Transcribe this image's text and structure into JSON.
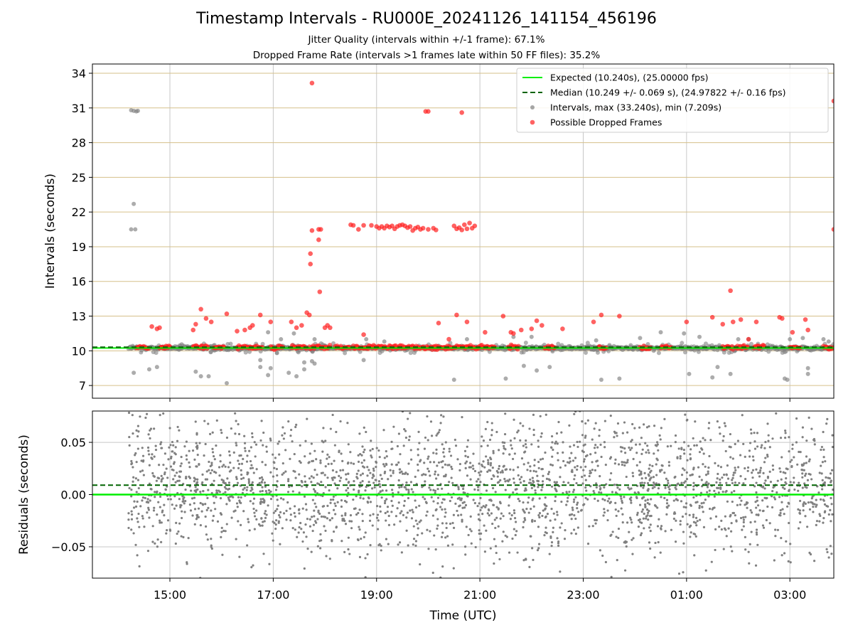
{
  "title": "Timestamp Intervals - RU000E_20241126_141154_456196",
  "subtitle_lines": [
    "Jitter Quality (intervals within +/-1 frame): 67.1%",
    "Dropped Frame Rate (intervals >1 frames late within 50 FF files): 35.2%"
  ],
  "colors": {
    "expected": "#00ee00",
    "median": "#006400",
    "intervals": "#808080",
    "dropped": "#ff2020",
    "h_grid": "#d6c08a",
    "v_grid": "#c8c8c8"
  },
  "chart_data": [
    {
      "type": "scatter",
      "panel": "intervals",
      "ylabel": "Intervals (seconds)",
      "xlabel": "",
      "x_unit": "hours since 00:00 UTC 2024-11-26",
      "xlim": [
        13.5,
        27.85
      ],
      "ylim": [
        5.9,
        34.8
      ],
      "yticks": [
        7,
        10,
        13,
        16,
        19,
        22,
        25,
        28,
        31,
        34
      ],
      "y_grid": true,
      "x_grid": true,
      "legend_position": "top-right",
      "legend": [
        "Expected (10.240s), (25.00000 fps)",
        "Median (10.249 +/- 0.069 s), (24.97822 +/- 0.16 fps)",
        "Intervals, max (33.240s), min (7.209s)",
        "Possible Dropped Frames"
      ],
      "expected_value": 10.24,
      "median_value": 10.249,
      "series": [
        {
          "name": "Intervals, max (33.240s), min (7.209s)",
          "points": [
            [
              14.25,
              30.8
            ],
            [
              14.3,
              30.75
            ],
            [
              14.35,
              30.7
            ],
            [
              14.38,
              30.75
            ],
            [
              14.25,
              20.5
            ],
            [
              14.33,
              20.5
            ],
            [
              14.3,
              22.7
            ],
            [
              14.3,
              8.1
            ],
            [
              14.6,
              8.4
            ],
            [
              14.75,
              8.6
            ],
            [
              15.5,
              8.2
            ],
            [
              15.6,
              7.8
            ],
            [
              15.75,
              7.8
            ],
            [
              16.1,
              7.2
            ],
            [
              16.75,
              9.2
            ],
            [
              16.75,
              8.6
            ],
            [
              16.9,
              7.9
            ],
            [
              16.95,
              8.5
            ],
            [
              17.3,
              8.1
            ],
            [
              17.45,
              7.8
            ],
            [
              17.6,
              8.4
            ],
            [
              17.75,
              9.1
            ],
            [
              17.8,
              8.9
            ],
            [
              17.6,
              9.0
            ],
            [
              18.75,
              9.2
            ],
            [
              20.5,
              7.5
            ],
            [
              21.5,
              7.6
            ],
            [
              21.85,
              8.7
            ],
            [
              22.1,
              8.3
            ],
            [
              22.35,
              8.6
            ],
            [
              23.35,
              7.5
            ],
            [
              23.7,
              7.6
            ],
            [
              25.05,
              8.0
            ],
            [
              25.5,
              7.7
            ],
            [
              25.6,
              8.6
            ],
            [
              25.85,
              8.0
            ],
            [
              26.95,
              7.5
            ],
            [
              26.9,
              7.6
            ],
            [
              27.35,
              8.5
            ],
            [
              27.35,
              8.0
            ],
            [
              16.9,
              11.6
            ],
            [
              17.15,
              11.0
            ],
            [
              17.4,
              11.5
            ],
            [
              17.8,
              11.0
            ],
            [
              18.8,
              11.0
            ],
            [
              19.15,
              10.8
            ],
            [
              20.75,
              11.0
            ],
            [
              21.65,
              11.2
            ],
            [
              22.0,
              11.2
            ],
            [
              23.25,
              10.9
            ],
            [
              24.1,
              11.1
            ],
            [
              24.5,
              11.6
            ],
            [
              24.95,
              11.5
            ],
            [
              25.25,
              11.2
            ],
            [
              26.0,
              11.0
            ],
            [
              26.2,
              11.0
            ],
            [
              27.0,
              11.0
            ],
            [
              27.25,
              11.1
            ],
            [
              27.65,
              11.0
            ],
            [
              27.75,
              10.8
            ]
          ]
        },
        {
          "name": "Possible Dropped Frames",
          "points": [
            [
              17.75,
              33.15
            ],
            [
              19.95,
              30.7
            ],
            [
              20.0,
              30.7
            ],
            [
              20.65,
              30.6
            ],
            [
              27.85,
              31.6
            ],
            [
              17.75,
              20.4
            ],
            [
              17.88,
              20.5
            ],
            [
              17.92,
              20.5
            ],
            [
              17.72,
              18.4
            ],
            [
              17.72,
              17.5
            ],
            [
              17.88,
              19.6
            ],
            [
              17.9,
              15.1
            ],
            [
              18.05,
              12.2
            ],
            [
              18.1,
              12.0
            ],
            [
              18.5,
              20.9
            ],
            [
              18.55,
              20.85
            ],
            [
              18.65,
              20.5
            ],
            [
              18.75,
              20.85
            ],
            [
              18.9,
              20.85
            ],
            [
              19.0,
              20.75
            ],
            [
              19.05,
              20.6
            ],
            [
              19.1,
              20.75
            ],
            [
              19.15,
              20.6
            ],
            [
              19.2,
              20.8
            ],
            [
              19.25,
              20.7
            ],
            [
              19.3,
              20.8
            ],
            [
              19.35,
              20.55
            ],
            [
              19.4,
              20.75
            ],
            [
              19.45,
              20.85
            ],
            [
              19.5,
              20.9
            ],
            [
              19.55,
              20.8
            ],
            [
              19.6,
              20.65
            ],
            [
              19.65,
              20.75
            ],
            [
              19.7,
              20.4
            ],
            [
              19.75,
              20.6
            ],
            [
              19.8,
              20.7
            ],
            [
              19.85,
              20.5
            ],
            [
              19.9,
              20.6
            ],
            [
              20.0,
              20.5
            ],
            [
              20.1,
              20.6
            ],
            [
              20.15,
              20.45
            ],
            [
              20.5,
              20.8
            ],
            [
              20.55,
              20.55
            ],
            [
              20.6,
              20.65
            ],
            [
              20.65,
              20.45
            ],
            [
              20.7,
              20.9
            ],
            [
              20.75,
              20.55
            ],
            [
              20.8,
              21.05
            ],
            [
              20.85,
              20.6
            ],
            [
              20.9,
              20.8
            ],
            [
              27.85,
              20.5
            ],
            [
              14.65,
              12.1
            ],
            [
              14.75,
              11.9
            ],
            [
              14.8,
              12.0
            ],
            [
              15.45,
              11.8
            ],
            [
              15.5,
              12.3
            ],
            [
              15.6,
              13.6
            ],
            [
              15.7,
              12.8
            ],
            [
              15.8,
              12.5
            ],
            [
              16.1,
              13.2
            ],
            [
              16.3,
              11.7
            ],
            [
              16.45,
              11.8
            ],
            [
              16.55,
              12.0
            ],
            [
              16.6,
              12.2
            ],
            [
              16.75,
              13.1
            ],
            [
              16.95,
              12.5
            ],
            [
              17.35,
              12.5
            ],
            [
              17.45,
              12.0
            ],
            [
              17.55,
              12.2
            ],
            [
              17.65,
              13.3
            ],
            [
              17.7,
              13.1
            ],
            [
              18.0,
              12.0
            ],
            [
              18.75,
              11.4
            ],
            [
              20.2,
              12.4
            ],
            [
              20.4,
              11.0
            ],
            [
              20.55,
              13.1
            ],
            [
              20.75,
              12.5
            ],
            [
              21.1,
              11.6
            ],
            [
              21.45,
              13.0
            ],
            [
              21.6,
              11.6
            ],
            [
              21.65,
              11.5
            ],
            [
              21.8,
              11.8
            ],
            [
              22.0,
              11.9
            ],
            [
              22.1,
              12.6
            ],
            [
              22.2,
              12.2
            ],
            [
              22.6,
              11.9
            ],
            [
              23.2,
              12.5
            ],
            [
              23.35,
              13.1
            ],
            [
              23.7,
              13.0
            ],
            [
              25.0,
              12.5
            ],
            [
              25.5,
              12.9
            ],
            [
              25.7,
              12.3
            ],
            [
              25.85,
              15.2
            ],
            [
              25.9,
              12.5
            ],
            [
              26.05,
              12.7
            ],
            [
              26.2,
              11.0
            ],
            [
              26.35,
              12.5
            ],
            [
              26.8,
              12.9
            ],
            [
              26.85,
              12.8
            ],
            [
              27.05,
              11.6
            ],
            [
              27.3,
              12.7
            ],
            [
              27.35,
              11.8
            ]
          ]
        }
      ],
      "baseline_band": {
        "x_start": 14.2,
        "x_end": 27.85,
        "interval_jitter": 0.25,
        "dropped_clusters": [
          [
            14.35,
            14.6
          ],
          [
            14.8,
            15.0
          ],
          [
            15.45,
            15.75
          ],
          [
            15.85,
            16.05
          ],
          [
            16.3,
            16.8
          ],
          [
            16.95,
            17.2
          ],
          [
            17.35,
            17.65
          ],
          [
            17.7,
            18.1
          ],
          [
            18.2,
            18.5
          ],
          [
            18.55,
            18.8
          ],
          [
            18.8,
            19.3
          ],
          [
            19.3,
            19.9
          ],
          [
            19.9,
            20.3
          ],
          [
            20.3,
            20.8
          ],
          [
            20.8,
            21.3
          ],
          [
            21.55,
            21.75
          ],
          [
            22.25,
            22.45
          ],
          [
            23.3,
            23.45
          ],
          [
            24.1,
            24.3
          ],
          [
            24.5,
            24.7
          ],
          [
            25.7,
            25.9
          ],
          [
            25.95,
            26.2
          ],
          [
            26.3,
            26.5
          ],
          [
            27.0,
            27.2
          ],
          [
            27.65,
            27.85
          ]
        ]
      }
    },
    {
      "type": "scatter",
      "panel": "residuals",
      "ylabel": "Residuals (seconds)",
      "xlabel": "Time (UTC)",
      "xlim": [
        13.5,
        27.85
      ],
      "ylim": [
        -0.08,
        0.08
      ],
      "yticks": [
        -0.05,
        0.0,
        0.05
      ],
      "ytick_labels": [
        "−0.05",
        "0.00",
        "0.05"
      ],
      "xticks": [
        15,
        17,
        19,
        21,
        23,
        25,
        27
      ],
      "xtick_labels": [
        "15:00",
        "17:00",
        "19:00",
        "21:00",
        "23:00",
        "01:00",
        "03:00"
      ],
      "y_grid": true,
      "x_grid": true,
      "expected_value": 0.0,
      "median_value": 0.009,
      "point_cloud": {
        "x_start": 14.2,
        "x_end": 27.85,
        "count": 2600,
        "center": 0.009,
        "spread_sd": 0.033
      }
    }
  ]
}
